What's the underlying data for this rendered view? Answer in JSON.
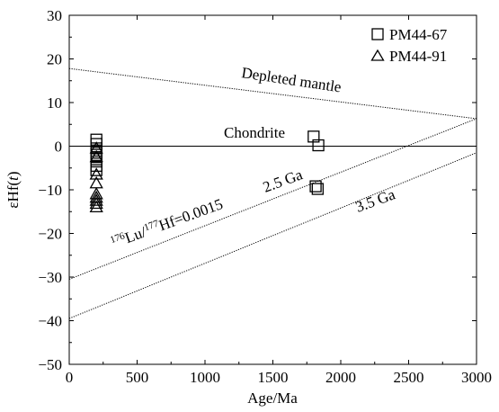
{
  "chart_data": {
    "type": "scatter",
    "xlabel": "Age/Ma",
    "ylabel_main": "εHf(",
    "ylabel_italic": "t",
    "ylabel_end": ")",
    "xlim": [
      0,
      3000
    ],
    "ylim": [
      -50,
      30
    ],
    "x_ticks": [
      0,
      500,
      1000,
      1500,
      2000,
      2500,
      3000
    ],
    "y_ticks": [
      -50,
      -40,
      -30,
      -20,
      -10,
      0,
      10,
      20,
      30
    ],
    "x_tick_labels": [
      "0",
      "500",
      "1000",
      "1500",
      "2000",
      "2500",
      "3000"
    ],
    "y_tick_labels": [
      "−50",
      "−40",
      "−30",
      "−20",
      "−10",
      "0",
      "10",
      "20",
      "30"
    ],
    "grid": false,
    "legend_position": "top-right",
    "series": [
      {
        "name": "PM44-67",
        "marker": "square",
        "points": [
          [
            200,
            1.5
          ],
          [
            200,
            0.5
          ],
          [
            200,
            -0.5
          ],
          [
            200,
            -1.5
          ],
          [
            200,
            -2.5
          ],
          [
            200,
            -3.5
          ],
          [
            200,
            -4.5
          ],
          [
            200,
            -5.5
          ],
          [
            1800,
            2.2
          ],
          [
            1835,
            0.2
          ],
          [
            1815,
            -9.2
          ],
          [
            1830,
            -9.8
          ]
        ]
      },
      {
        "name": "PM44-91",
        "marker": "triangle",
        "points": [
          [
            200,
            -0.5
          ],
          [
            200,
            -2.5
          ],
          [
            200,
            -6.5
          ],
          [
            200,
            -8.5
          ],
          [
            200,
            -11.0
          ],
          [
            200,
            -11.8
          ],
          [
            200,
            -12.5
          ],
          [
            200,
            -13.2
          ],
          [
            200,
            -14.0
          ]
        ]
      }
    ],
    "reference_lines": [
      {
        "name": "Depleted mantle",
        "style": "dotted",
        "x": [
          0,
          3000
        ],
        "y": [
          17.8,
          6.3
        ]
      },
      {
        "name": "Chondrite",
        "style": "solid",
        "x": [
          0,
          3000
        ],
        "y": [
          0,
          0
        ]
      },
      {
        "name": "2.5 Ga",
        "style": "dotted",
        "x": [
          0,
          3000
        ],
        "y": [
          -30.5,
          6.3
        ]
      },
      {
        "name": "3.5 Ga",
        "style": "dotted",
        "x": [
          0,
          3000
        ],
        "y": [
          -39.5,
          -1.5
        ]
      }
    ],
    "annotations": {
      "depleted_mantle": "Depleted mantle",
      "chondrite": "Chondrite",
      "ga25": "2.5 Ga",
      "ga35": "3.5 Ga",
      "lu_sup1": "176",
      "lu_text1": "Lu/",
      "lu_sup2": "177",
      "lu_text2": "Hf=0.0015"
    }
  }
}
